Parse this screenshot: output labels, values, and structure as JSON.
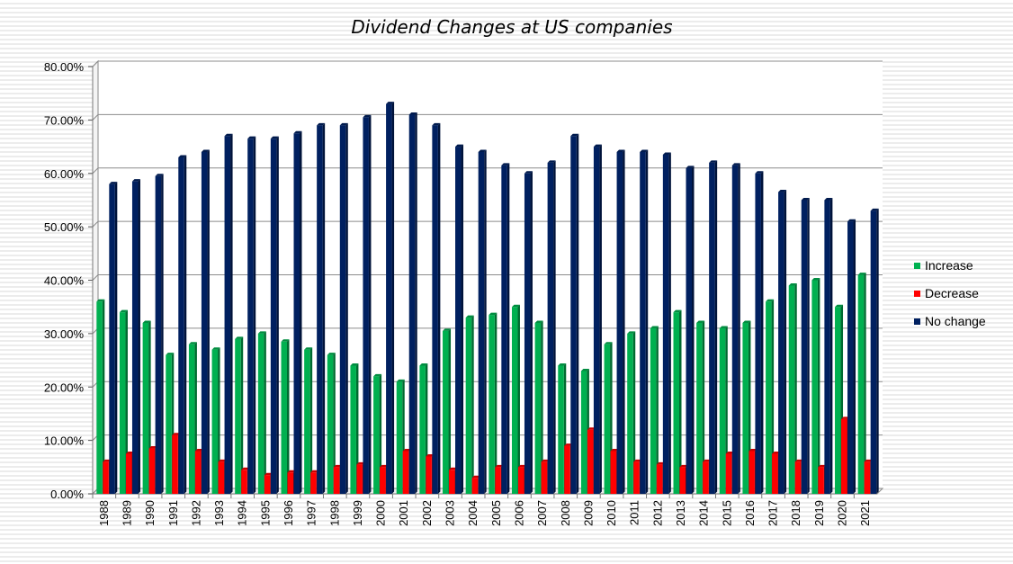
{
  "chart_data": {
    "type": "bar",
    "title": "Dividend Changes at US companies",
    "xlabel": "",
    "ylabel": "",
    "ylim": [
      0,
      80
    ],
    "yticks": [
      "0.00%",
      "10.00%",
      "20.00%",
      "30.00%",
      "40.00%",
      "50.00%",
      "60.00%",
      "70.00%",
      "80.00%"
    ],
    "grid": true,
    "legend_position": "right",
    "categories": [
      "1988",
      "1989",
      "1990",
      "1991",
      "1992",
      "1993",
      "1994",
      "1995",
      "1996",
      "1997",
      "1998",
      "1999",
      "2000",
      "2001",
      "2002",
      "2003",
      "2004",
      "2005",
      "2006",
      "2007",
      "2008",
      "2009",
      "2010",
      "2011",
      "2012",
      "2013",
      "2014",
      "2015",
      "2016",
      "2017",
      "2018",
      "2019",
      "2020",
      "2021"
    ],
    "series": [
      {
        "name": "Increase",
        "color": "#00b050",
        "values": [
          36,
          34,
          32,
          26,
          28,
          27,
          29,
          30,
          28.5,
          27,
          26,
          24,
          22,
          21,
          24,
          30.5,
          33,
          33.5,
          35,
          32,
          24,
          23,
          28,
          30,
          31,
          34,
          32,
          31,
          32,
          36,
          39,
          40,
          35,
          41
        ]
      },
      {
        "name": "Decrease",
        "color": "#ff0000",
        "values": [
          6,
          7.5,
          8.5,
          11,
          8,
          6,
          4.5,
          3.5,
          4,
          4,
          5,
          5.5,
          5,
          8,
          7,
          4.5,
          3,
          5,
          5,
          6,
          9,
          12,
          8,
          6,
          5.5,
          5,
          6,
          7.5,
          8,
          7.5,
          6,
          5,
          14,
          6
        ]
      },
      {
        "name": "No change",
        "color": "#002060",
        "values": [
          58,
          58.5,
          59.5,
          63,
          64,
          67,
          66.5,
          66.5,
          67.5,
          69,
          69,
          70.5,
          73,
          71,
          69,
          65,
          64,
          61.5,
          60,
          62,
          67,
          65,
          64,
          64,
          63.5,
          61,
          62,
          61.5,
          60,
          56.5,
          55,
          55,
          51,
          53
        ]
      }
    ]
  }
}
